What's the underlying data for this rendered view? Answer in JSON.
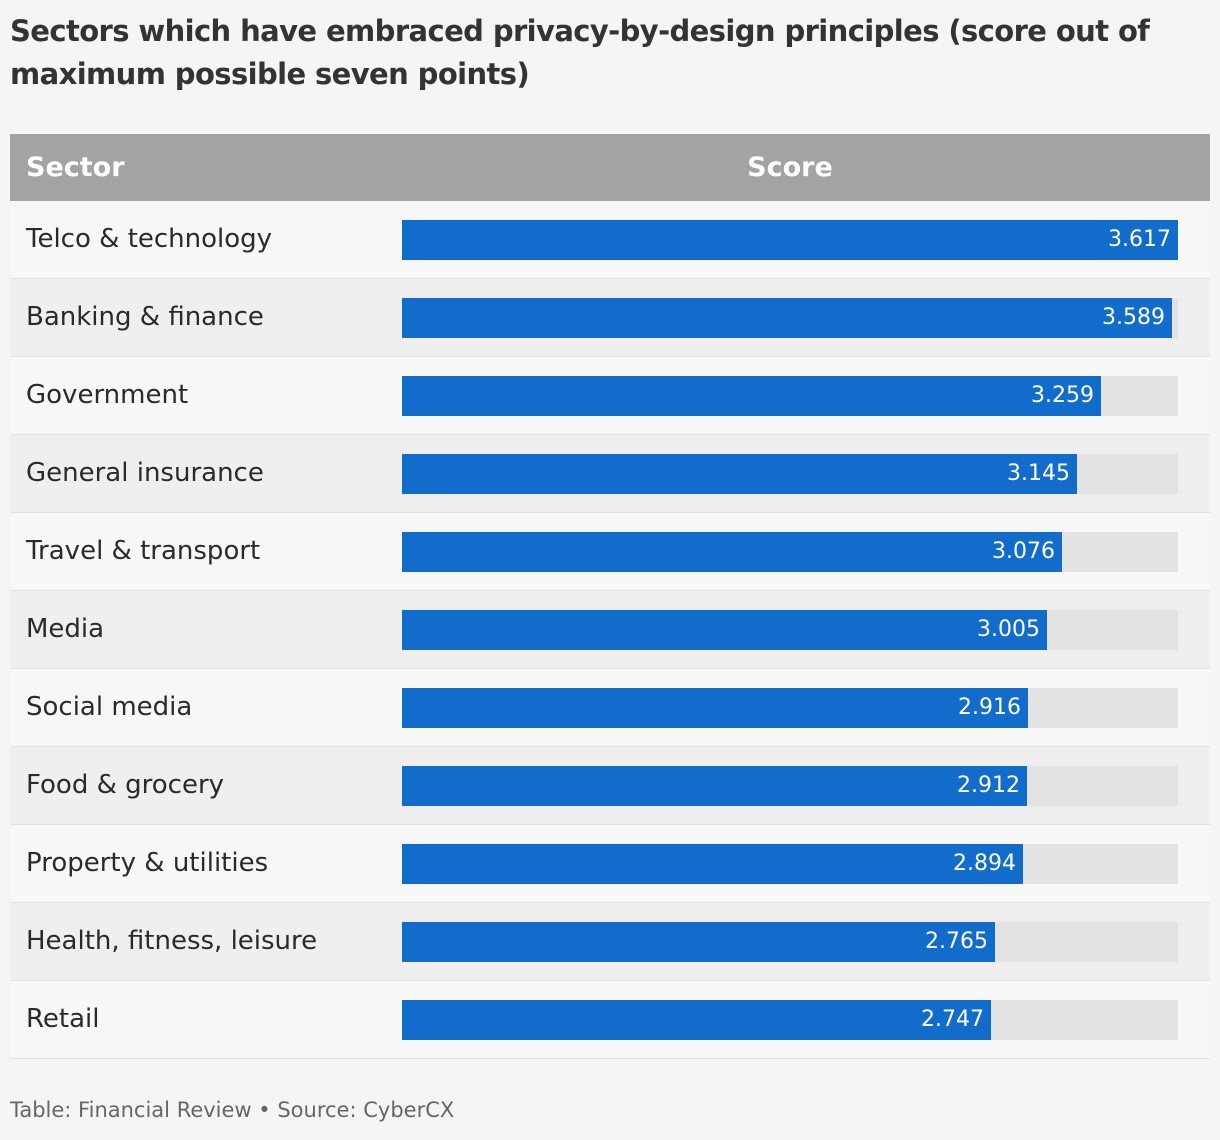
{
  "title": "Sectors which have embraced privacy-by-design principles (score out of maximum possible seven points)",
  "header": {
    "sector_label": "Sector",
    "score_label": "Score"
  },
  "footer": {
    "text": "Table: Financial Review • Source: CyberCX"
  },
  "colors": {
    "bar": "#126ccb",
    "track": "#e3e3e3",
    "header": "#a3a3a3"
  },
  "chart_data": {
    "type": "table",
    "columns": [
      "Sector",
      "Score"
    ],
    "categories": [
      "Telco & technology",
      "Banking & finance",
      "Government",
      "General insurance",
      "Travel & transport",
      "Media",
      "Social media",
      "Food & grocery",
      "Property & utilities",
      "Health, fitness, leisure",
      "Retail"
    ],
    "values": [
      "3.617",
      "3.589",
      "3.259",
      "3.145",
      "3.076",
      "3.005",
      "2.916",
      "2.912",
      "2.894",
      "2.765",
      "2.747"
    ]
  }
}
